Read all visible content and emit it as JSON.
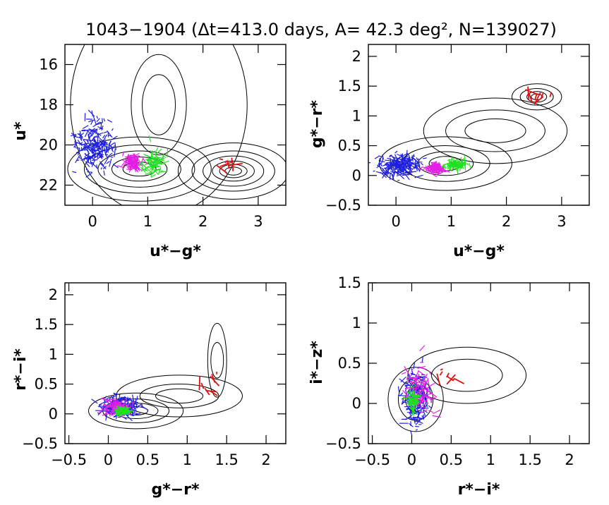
{
  "figure": {
    "title": "1043−1904 (Δt=413.0 days, A= 42.3 deg², N=139027)"
  },
  "colors": {
    "blue": "#1f1fe0",
    "magenta": "#e51ee5",
    "green": "#22e022",
    "red": "#e01010",
    "contour": "#000000"
  },
  "chart_data": [
    {
      "type": "scatter",
      "panel": "top-left",
      "xlabel": "u*−g*",
      "ylabel": "u*",
      "xlim": [
        -0.5,
        3.5
      ],
      "ylim": [
        23,
        15
      ],
      "y_inverted": true,
      "xticks": [
        0,
        1,
        2,
        3
      ],
      "xtick_labels": [
        "0",
        "1",
        "2",
        "3"
      ],
      "yticks": [
        16,
        18,
        20,
        22
      ],
      "ytick_labels": [
        "16",
        "18",
        "20",
        "22"
      ],
      "series": [
        {
          "color": "blue",
          "center": [
            0.05,
            20.0
          ],
          "spread": [
            0.3,
            1.0
          ],
          "count": 220
        },
        {
          "color": "magenta",
          "center": [
            0.72,
            20.9
          ],
          "spread": [
            0.12,
            0.3
          ],
          "count": 120
        },
        {
          "color": "green",
          "center": [
            1.1,
            20.9
          ],
          "spread": [
            0.18,
            0.5
          ],
          "count": 90
        },
        {
          "color": "red",
          "center": [
            2.5,
            21.0
          ],
          "spread": [
            0.2,
            0.3
          ],
          "count": 8
        }
      ]
    },
    {
      "type": "scatter",
      "panel": "top-right",
      "xlabel": "u*−g*",
      "ylabel": "g*−r*",
      "xlim": [
        -0.5,
        3.5
      ],
      "ylim": [
        -0.5,
        2.2
      ],
      "xticks": [
        0,
        1,
        2,
        3
      ],
      "xtick_labels": [
        "0",
        "1",
        "2",
        "3"
      ],
      "yticks": [
        -0.5,
        0,
        0.5,
        1,
        1.5,
        2
      ],
      "ytick_labels": [
        "−0.5",
        "0",
        "0.5",
        "1",
        "1.5",
        "2"
      ],
      "series": [
        {
          "color": "blue",
          "center": [
            0.05,
            0.18
          ],
          "spread": [
            0.3,
            0.15
          ],
          "count": 220
        },
        {
          "color": "magenta",
          "center": [
            0.72,
            0.12
          ],
          "spread": [
            0.12,
            0.06
          ],
          "count": 120
        },
        {
          "color": "green",
          "center": [
            1.1,
            0.18
          ],
          "spread": [
            0.15,
            0.06
          ],
          "count": 90
        },
        {
          "color": "red",
          "center": [
            2.5,
            1.3
          ],
          "spread": [
            0.3,
            0.1
          ],
          "count": 8
        }
      ]
    },
    {
      "type": "scatter",
      "panel": "bottom-left",
      "xlabel": "g*−r*",
      "ylabel": "r*−i*",
      "xlim": [
        -0.55,
        2.25
      ],
      "ylim": [
        -0.5,
        2.2
      ],
      "xticks": [
        -0.5,
        0,
        0.5,
        1,
        1.5,
        2
      ],
      "xtick_labels": [
        "−0.5",
        "0",
        "0.5",
        "1",
        "1.5",
        "2"
      ],
      "yticks": [
        -0.5,
        0,
        0.5,
        1,
        1.5,
        2
      ],
      "ytick_labels": [
        "−0.5",
        "0",
        "0.5",
        "1",
        "1.5",
        "2"
      ],
      "series": [
        {
          "color": "blue",
          "center": [
            0.15,
            0.12
          ],
          "spread": [
            0.18,
            0.12
          ],
          "count": 220
        },
        {
          "color": "magenta",
          "center": [
            0.12,
            0.1
          ],
          "spread": [
            0.15,
            0.12
          ],
          "count": 120
        },
        {
          "color": "green",
          "center": [
            0.18,
            0.05
          ],
          "spread": [
            0.08,
            0.04
          ],
          "count": 80
        },
        {
          "color": "red",
          "center": [
            1.3,
            0.5
          ],
          "spread": [
            0.1,
            0.2
          ],
          "count": 8
        }
      ]
    },
    {
      "type": "scatter",
      "panel": "bottom-right",
      "xlabel": "r*−i*",
      "ylabel": "i*−z*",
      "xlim": [
        -0.55,
        2.25
      ],
      "ylim": [
        -0.5,
        1.5
      ],
      "xticks": [
        -0.5,
        0,
        0.5,
        1,
        1.5,
        2
      ],
      "xtick_labels": [
        "−0.5",
        "0",
        "0.5",
        "1",
        "1.5",
        "2"
      ],
      "yticks": [
        -0.5,
        0,
        0.5,
        1,
        1.5
      ],
      "ytick_labels": [
        "−0.5",
        "0",
        "0.5",
        "1",
        "1.5"
      ],
      "series": [
        {
          "color": "blue",
          "center": [
            0.05,
            0.05
          ],
          "spread": [
            0.12,
            0.25
          ],
          "count": 200
        },
        {
          "color": "magenta",
          "center": [
            0.1,
            0.15
          ],
          "spread": [
            0.15,
            0.25
          ],
          "count": 100
        },
        {
          "color": "green",
          "center": [
            0.02,
            0.05
          ],
          "spread": [
            0.05,
            0.12
          ],
          "count": 70
        },
        {
          "color": "red",
          "center": [
            0.45,
            0.3
          ],
          "spread": [
            0.2,
            0.15
          ],
          "count": 8
        }
      ]
    }
  ]
}
